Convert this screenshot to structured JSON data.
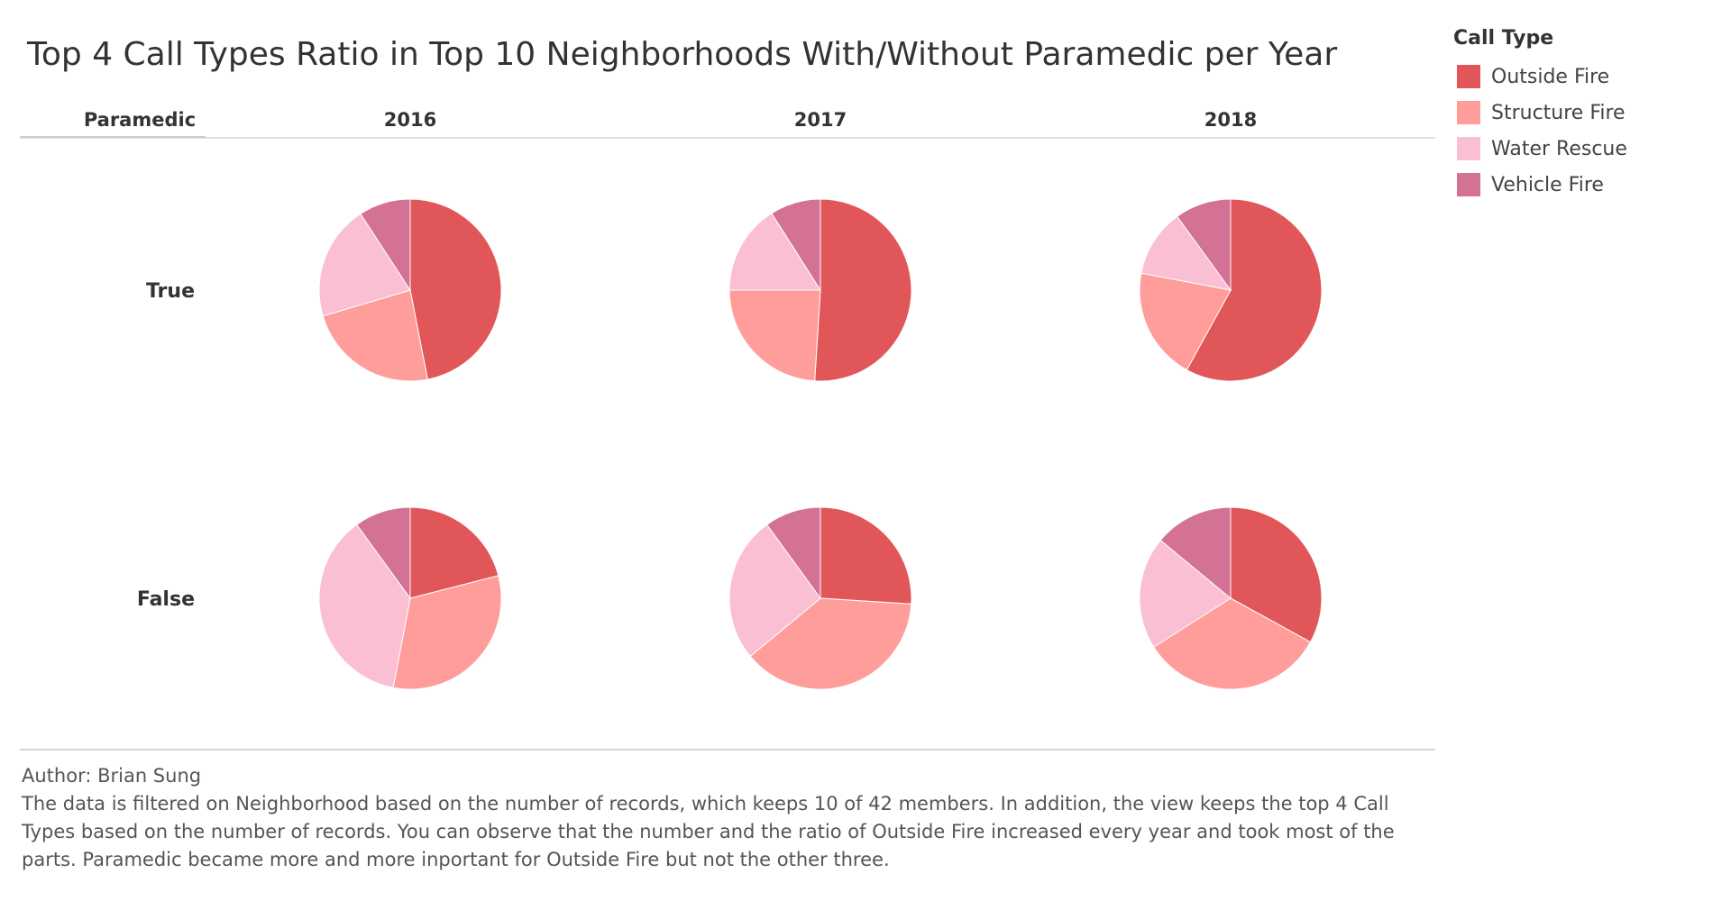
{
  "chart_data": {
    "type": "pie",
    "title": "Top 4 Call Types Ratio in Top 10 Neighborhoods With/Without Paramedic per Year",
    "row_field": "Paramedic",
    "columns": [
      "2016",
      "2017",
      "2018"
    ],
    "rows": [
      "True",
      "False"
    ],
    "legend": {
      "title": "Call Type",
      "placement": "top-right",
      "entries": [
        {
          "name": "Outside Fire",
          "color": "#e15759"
        },
        {
          "name": "Structure Fire",
          "color": "#ff9d9a"
        },
        {
          "name": "Water Rescue",
          "color": "#fabfd2"
        },
        {
          "name": "Vehicle Fire",
          "color": "#d37295"
        }
      ]
    },
    "categories": [
      "Outside Fire",
      "Structure Fire",
      "Water Rescue",
      "Vehicle Fire"
    ],
    "panels": [
      {
        "paramedic": "True",
        "year": "2016",
        "values": [
          0.46,
          0.23,
          0.2,
          0.09
        ]
      },
      {
        "paramedic": "True",
        "year": "2017",
        "values": [
          0.51,
          0.24,
          0.16,
          0.09
        ]
      },
      {
        "paramedic": "True",
        "year": "2018",
        "values": [
          0.58,
          0.2,
          0.12,
          0.1
        ]
      },
      {
        "paramedic": "False",
        "year": "2016",
        "values": [
          0.21,
          0.32,
          0.37,
          0.1
        ]
      },
      {
        "paramedic": "False",
        "year": "2017",
        "values": [
          0.26,
          0.38,
          0.26,
          0.1
        ]
      },
      {
        "paramedic": "False",
        "year": "2018",
        "values": [
          0.33,
          0.33,
          0.2,
          0.14
        ]
      }
    ]
  },
  "footer": {
    "author": "Author: Brian Sung",
    "description": "The data is filtered on Neighborhood based on the number of records, which keeps 10 of 42 members. In addition, the view keeps the top 4 Call Types based on the number of records. You can observe that the number and the ratio of Outside Fire increased every year and took most of the parts. Paramedic became more and more inportant for Outside Fire but not the other three."
  }
}
